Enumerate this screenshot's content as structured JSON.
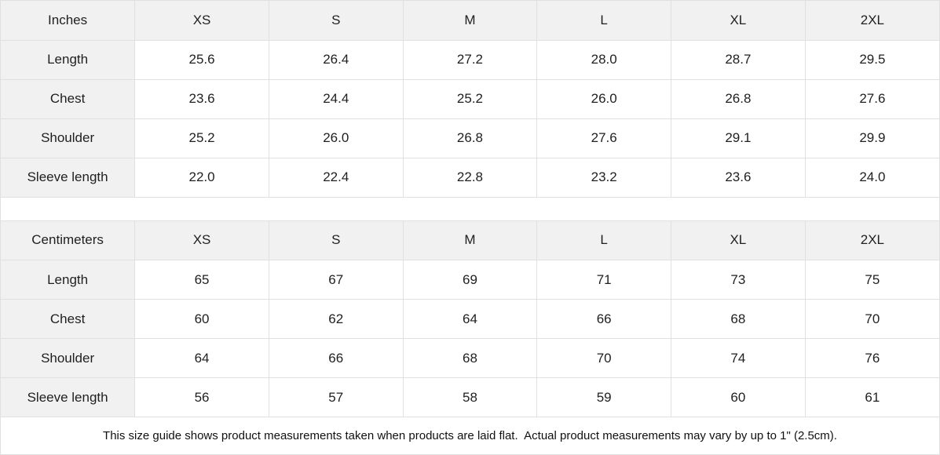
{
  "colors": {
    "header_bg": "#f1f1f1",
    "label_bg": "#f1f1f1",
    "border": "#e0e0e0",
    "cell_bg": "#ffffff",
    "text": "#1f1f1f"
  },
  "tables": [
    {
      "unit_label": "Inches",
      "size_headers": [
        "XS",
        "S",
        "M",
        "L",
        "XL",
        "2XL"
      ],
      "rows": [
        {
          "label": "Length",
          "values": [
            "25.6",
            "26.4",
            "27.2",
            "28.0",
            "28.7",
            "29.5"
          ]
        },
        {
          "label": "Chest",
          "values": [
            "23.6",
            "24.4",
            "25.2",
            "26.0",
            "26.8",
            "27.6"
          ]
        },
        {
          "label": "Shoulder",
          "values": [
            "25.2",
            "26.0",
            "26.8",
            "27.6",
            "29.1",
            "29.9"
          ]
        },
        {
          "label": "Sleeve length",
          "values": [
            "22.0",
            "22.4",
            "22.8",
            "23.2",
            "23.6",
            "24.0"
          ]
        }
      ]
    },
    {
      "unit_label": "Centimeters",
      "size_headers": [
        "XS",
        "S",
        "M",
        "L",
        "XL",
        "2XL"
      ],
      "rows": [
        {
          "label": "Length",
          "values": [
            "65",
            "67",
            "69",
            "71",
            "73",
            "75"
          ]
        },
        {
          "label": "Chest",
          "values": [
            "60",
            "62",
            "64",
            "66",
            "68",
            "70"
          ]
        },
        {
          "label": "Shoulder",
          "values": [
            "64",
            "66",
            "68",
            "70",
            "74",
            "76"
          ]
        },
        {
          "label": "Sleeve length",
          "values": [
            "56",
            "57",
            "58",
            "59",
            "60",
            "61"
          ]
        }
      ]
    }
  ],
  "footer_note": "This size guide shows product measurements taken when products are laid flat.  Actual product measurements may vary by up to 1\" (2.5cm)."
}
